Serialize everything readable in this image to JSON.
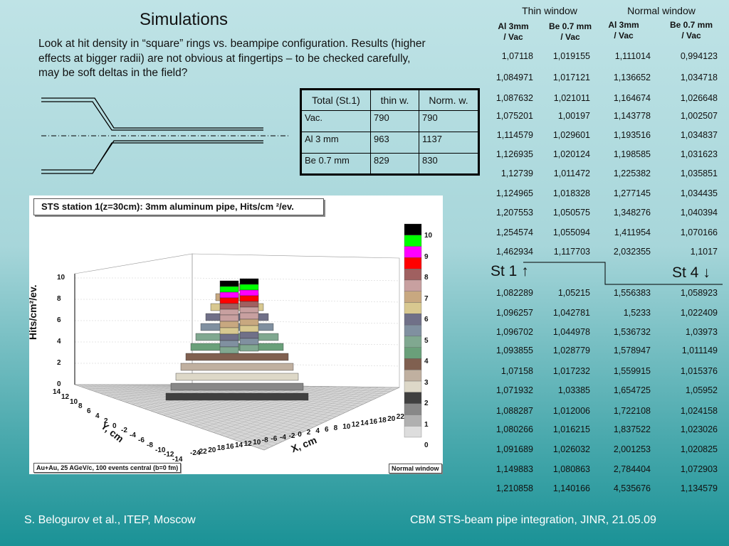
{
  "title": "Simulations",
  "intro": "Look at hit density in “square” rings vs. beampipe configuration. Results (higher effects at bigger radii) are not obvious at  fingertips – to be checked carefully, may be soft deltas in the field?",
  "totals": {
    "headers": [
      "Total (St.1)",
      "thin w.",
      "Norm. w."
    ],
    "rows": [
      [
        "Vac.",
        "790",
        "790"
      ],
      [
        "Al 3 mm",
        "963",
        "1137"
      ],
      [
        "Be 0.7 mm",
        " 829",
        "830"
      ]
    ]
  },
  "ratios": {
    "group_headers": [
      "Thin window",
      "Normal window"
    ],
    "col_headers": [
      "Al 3mm\n/ Vac",
      "Be 0.7 mm\n/ Vac",
      "Al 3mm\n/ Vac",
      "Be 0.7 mm\n/ Vac"
    ],
    "st1_label": "St 1 ↑",
    "st4_label": "St 4 ↓",
    "st1": [
      [
        "1,07118",
        "1,019155",
        "1,111014",
        "0,994123"
      ],
      [
        "1,084971",
        "1,017121",
        "1,136652",
        "1,034718"
      ],
      [
        "1,087632",
        "1,021011",
        "1,164674",
        "1,026648"
      ],
      [
        "1,075201",
        "1,00197",
        "1,143778",
        "1,002507"
      ],
      [
        "1,114579",
        "1,029601",
        "1,193516",
        "1,034837"
      ],
      [
        "1,126935",
        "1,020124",
        "1,198585",
        "1,031623"
      ],
      [
        "1,12739",
        "1,011472",
        "1,225382",
        "1,035851"
      ],
      [
        "1,124965",
        "1,018328",
        "1,277145",
        "1,034435"
      ],
      [
        "1,207553",
        "1,050575",
        "1,348276",
        "1,040394"
      ],
      [
        "1,254574",
        "1,055094",
        "1,411954",
        "1,070166"
      ],
      [
        "1,462934",
        "1,117703",
        "2,032355",
        "1,1017"
      ]
    ],
    "st4": [
      [
        "1,082289",
        "1,05215",
        "1,556383",
        "1,058923"
      ],
      [
        "1,096257",
        "1,042781",
        "1,5233",
        "1,022409"
      ],
      [
        "1,096702",
        "1,044978",
        "1,536732",
        "1,03973"
      ],
      [
        "1,093855",
        "1,028779",
        "1,578947",
        "1,011149"
      ],
      [
        "1,07158",
        "1,017232",
        "1,559915",
        "1,015376"
      ],
      [
        "1,071932",
        "1,03385",
        "1,654725",
        "1,05952"
      ],
      [
        "1,088287",
        "1,012006",
        "1,722108",
        "1,024158"
      ],
      [
        "1,080266",
        "1,016215",
        "1,837522",
        "1,023026"
      ],
      [
        "1,091689",
        "1,026032",
        "2,001253",
        "1,020825"
      ],
      [
        "1,149883",
        "1,080863",
        "2,784404",
        "1,072903"
      ],
      [
        "1,210858",
        "1,140166",
        "4,535676",
        "1,134579"
      ]
    ]
  },
  "plot": {
    "title": "STS station 1(z=30cm): 3mm aluminum pipe, Hits/cm ²/ev.",
    "zlabel": "Hits/cm²/ev.",
    "xlabel": "X, cm",
    "ylabel": "Y, cm",
    "note_left": "Au+Au, 25 AGeV/c, 100 events central (b=0 fm)",
    "note_right": "Normal window",
    "z_ticks": [
      "10",
      "8",
      "6",
      "4",
      "2",
      "0"
    ],
    "x_ticks": [
      "-24",
      "22",
      "20",
      "18",
      "16",
      "14",
      "12",
      "10",
      "-8",
      "-6",
      "-4",
      "-2",
      "0",
      "2",
      "4",
      "6",
      "8",
      "10",
      "12",
      "14",
      "16",
      "18",
      "20",
      "22"
    ],
    "y_ticks": [
      "14",
      "12",
      "10",
      "8",
      "6",
      "4",
      "2",
      "0",
      "-2",
      "-4",
      "-6",
      "-8",
      "-10",
      "-12",
      "-14"
    ],
    "palette_labels": [
      "10",
      "9",
      "8",
      "7",
      "6",
      "5",
      "4",
      "3",
      "2",
      "1",
      "0"
    ],
    "palette_colors": [
      "#000000",
      "#00ff00",
      "#ff00ff",
      "#ff0000",
      "#a06060",
      "#c8a0a0",
      "#c8a880",
      "#d8c890",
      "#707088",
      "#8090a0",
      "#80a890",
      "#6aa07a",
      "#806050",
      "#c0b0a0",
      "#ddd8c8",
      "#404040",
      "#888888",
      "#b0b0b0",
      "#dddddd"
    ]
  },
  "footer": {
    "left": "S. Belogurov et al., ITEP, Moscow",
    "right": "CBM STS-beam pipe integration, JINR,  21.05.09"
  }
}
